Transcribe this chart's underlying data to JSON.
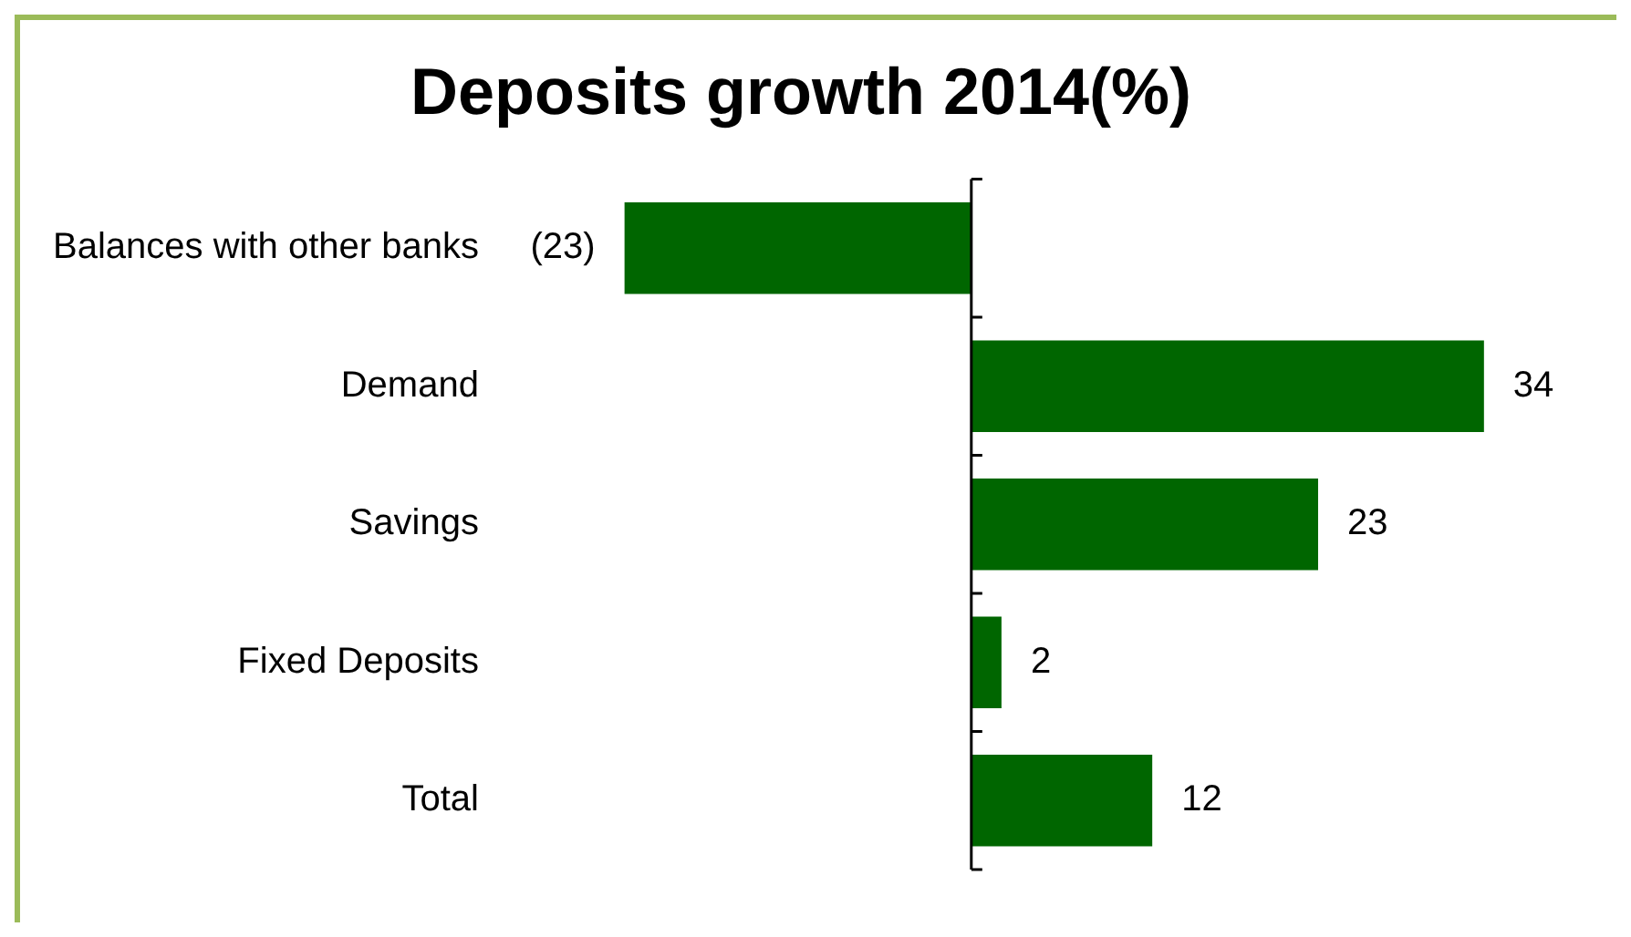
{
  "chart_data": {
    "type": "bar",
    "orientation": "horizontal",
    "title": "Deposits growth 2014(%)",
    "categories": [
      "Balances with other banks",
      "Demand",
      "Savings",
      "Fixed Deposits",
      "Total"
    ],
    "values": [
      -23,
      34,
      23,
      2,
      12
    ],
    "value_labels": [
      "(23)",
      "34",
      "23",
      "2",
      "12"
    ],
    "color": "#006600"
  }
}
